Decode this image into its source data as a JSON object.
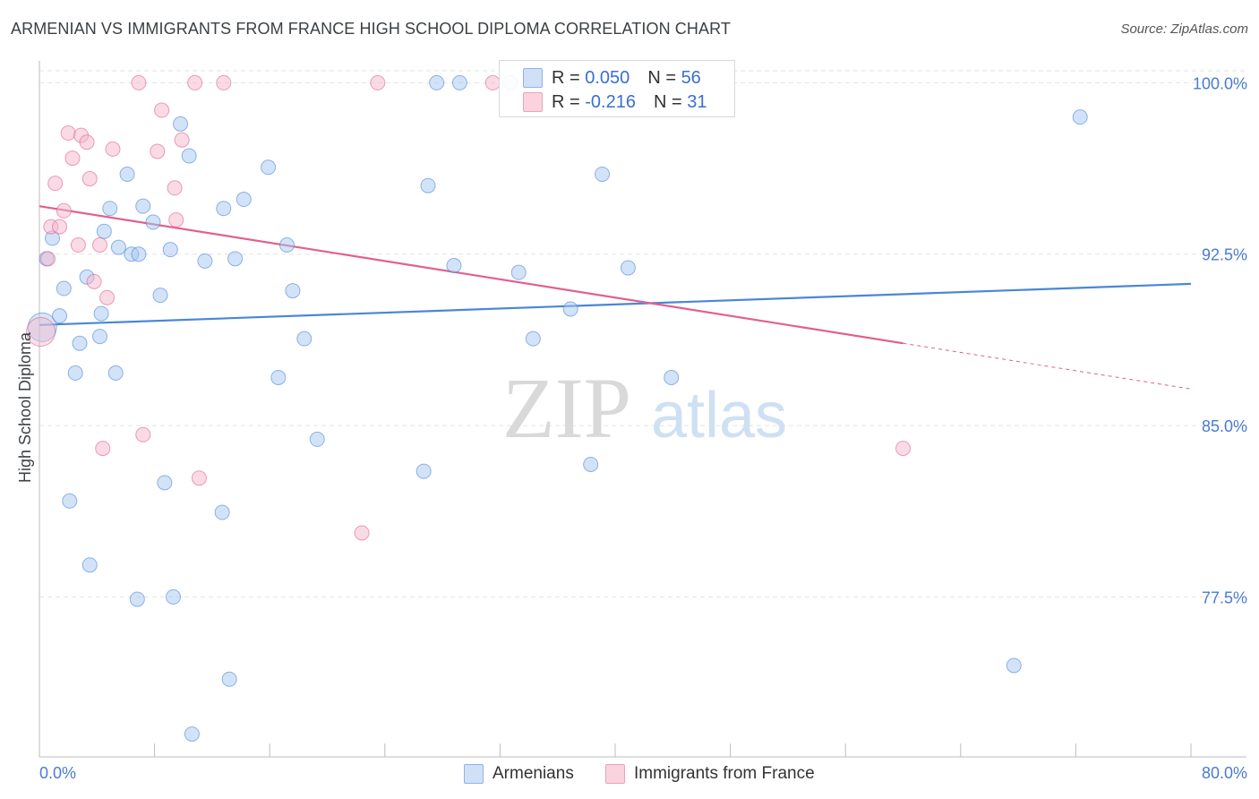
{
  "header": {
    "title": "ARMENIAN VS IMMIGRANTS FROM FRANCE HIGH SCHOOL DIPLOMA CORRELATION CHART",
    "source": "Source: ZipAtlas.com"
  },
  "watermark": {
    "zip": "ZIP",
    "atlas": "atlas"
  },
  "legend": {
    "rows": [
      {
        "r_label": "R =",
        "r_value": "0.050",
        "n_label": "N =",
        "n_value": "56",
        "color": "#a8c8f0"
      },
      {
        "r_label": "R =",
        "r_value": "-0.216",
        "n_label": "N =",
        "n_value": "31",
        "color": "#f5b8cb"
      }
    ]
  },
  "bottom_legend": {
    "items": [
      {
        "label": "Armenians",
        "color": "#a8c8f0"
      },
      {
        "label": "Immigrants from France",
        "color": "#f5b8cb"
      }
    ]
  },
  "chart_data": {
    "type": "scatter",
    "title": "ARMENIAN VS IMMIGRANTS FROM FRANCE HIGH SCHOOL DIPLOMA CORRELATION CHART",
    "xlabel": "",
    "ylabel": "High School Diploma",
    "xlim": [
      0,
      80
    ],
    "ylim": [
      70.5,
      100.8
    ],
    "x_tick_labels": [
      "0.0%",
      "80.0%"
    ],
    "y_ticks": [
      77.5,
      85.0,
      92.5,
      100.0
    ],
    "y_tick_labels": [
      "77.5%",
      "85.0%",
      "92.5%",
      "100.0%"
    ],
    "grid": true,
    "legend_position": "top-center",
    "series": [
      {
        "name": "Armenians",
        "color": "#4a86d8",
        "fill": "#a8c8f0",
        "trend": {
          "x": [
            0,
            80
          ],
          "y": [
            89.4,
            91.2
          ]
        },
        "points": [
          [
            0.2,
            89.3
          ],
          [
            0.5,
            92.3
          ],
          [
            0.9,
            93.2
          ],
          [
            1.4,
            89.8
          ],
          [
            1.7,
            91.0
          ],
          [
            2.1,
            81.7
          ],
          [
            2.5,
            87.3
          ],
          [
            2.8,
            88.6
          ],
          [
            3.3,
            91.5
          ],
          [
            3.5,
            78.9
          ],
          [
            4.2,
            88.9
          ],
          [
            4.3,
            89.9
          ],
          [
            4.5,
            93.5
          ],
          [
            4.9,
            94.5
          ],
          [
            5.3,
            87.3
          ],
          [
            5.5,
            92.8
          ],
          [
            6.1,
            96.0
          ],
          [
            6.4,
            92.5
          ],
          [
            6.8,
            77.4
          ],
          [
            6.9,
            92.5
          ],
          [
            7.2,
            94.6
          ],
          [
            7.9,
            93.9
          ],
          [
            8.4,
            90.7
          ],
          [
            8.7,
            82.5
          ],
          [
            9.1,
            92.7
          ],
          [
            9.3,
            77.5
          ],
          [
            9.8,
            98.2
          ],
          [
            10.4,
            96.8
          ],
          [
            10.6,
            71.5
          ],
          [
            11.5,
            92.2
          ],
          [
            12.7,
            81.2
          ],
          [
            12.8,
            94.5
          ],
          [
            13.2,
            73.9
          ],
          [
            13.6,
            92.3
          ],
          [
            14.2,
            94.9
          ],
          [
            15.9,
            96.3
          ],
          [
            16.6,
            87.1
          ],
          [
            17.2,
            92.9
          ],
          [
            17.6,
            90.9
          ],
          [
            18.4,
            88.8
          ],
          [
            19.3,
            84.4
          ],
          [
            26.7,
            83.0
          ],
          [
            27.0,
            95.5
          ],
          [
            27.6,
            100.0
          ],
          [
            29.2,
            100.0
          ],
          [
            28.8,
            92.0
          ],
          [
            32.7,
            100.0
          ],
          [
            33.3,
            91.7
          ],
          [
            34.3,
            88.8
          ],
          [
            36.9,
            90.1
          ],
          [
            38.3,
            83.3
          ],
          [
            39.1,
            96.0
          ],
          [
            40.9,
            91.9
          ],
          [
            43.9,
            87.1
          ],
          [
            67.7,
            74.5
          ],
          [
            72.3,
            98.5
          ]
        ]
      },
      {
        "name": "Immigrants from France",
        "color": "#e0608f",
        "fill": "#f5b8cb",
        "trend": {
          "x": [
            0,
            60
          ],
          "y": [
            94.6,
            88.6
          ]
        },
        "trend_dashed": {
          "x": [
            60,
            80
          ],
          "y": [
            88.6,
            86.6
          ]
        },
        "points": [
          [
            0.1,
            89.1
          ],
          [
            0.6,
            92.3
          ],
          [
            0.8,
            93.7
          ],
          [
            1.1,
            95.6
          ],
          [
            1.4,
            93.7
          ],
          [
            1.7,
            94.4
          ],
          [
            2.0,
            97.8
          ],
          [
            2.3,
            96.7
          ],
          [
            2.7,
            92.9
          ],
          [
            2.9,
            97.7
          ],
          [
            3.3,
            97.4
          ],
          [
            3.5,
            95.8
          ],
          [
            3.8,
            91.3
          ],
          [
            4.2,
            92.9
          ],
          [
            4.4,
            84.0
          ],
          [
            4.7,
            90.6
          ],
          [
            5.1,
            97.1
          ],
          [
            6.9,
            100.0
          ],
          [
            7.2,
            84.6
          ],
          [
            8.2,
            97.0
          ],
          [
            8.5,
            98.8
          ],
          [
            9.4,
            95.4
          ],
          [
            9.5,
            94.0
          ],
          [
            9.9,
            97.5
          ],
          [
            10.8,
            100.0
          ],
          [
            11.1,
            82.7
          ],
          [
            12.8,
            100.0
          ],
          [
            22.4,
            80.3
          ],
          [
            23.5,
            100.0
          ],
          [
            31.5,
            100.0
          ],
          [
            60.0,
            84.0
          ]
        ]
      }
    ]
  }
}
